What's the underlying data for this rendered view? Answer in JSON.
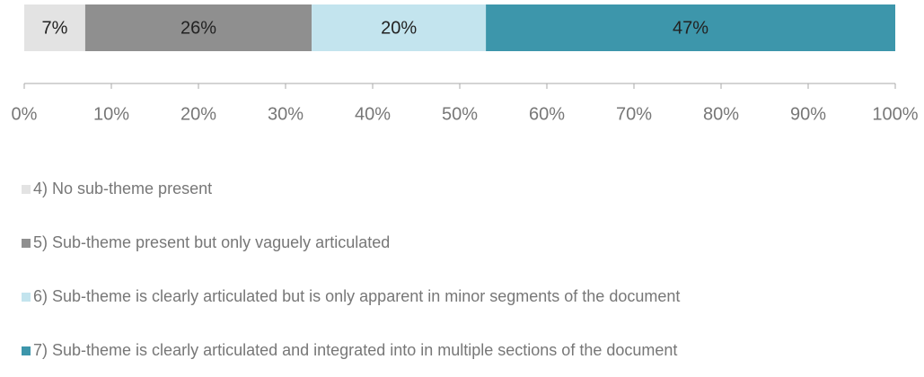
{
  "chart_data": {
    "type": "bar",
    "orientation": "horizontal",
    "stacked": true,
    "xlim": [
      0,
      100
    ],
    "xticks": [
      {
        "value": 0,
        "label": "0%"
      },
      {
        "value": 10,
        "label": "10%"
      },
      {
        "value": 20,
        "label": "20%"
      },
      {
        "value": 30,
        "label": "30%"
      },
      {
        "value": 40,
        "label": "40%"
      },
      {
        "value": 50,
        "label": "50%"
      },
      {
        "value": 60,
        "label": "60%"
      },
      {
        "value": 70,
        "label": "70%"
      },
      {
        "value": 80,
        "label": "80%"
      },
      {
        "value": 90,
        "label": "90%"
      },
      {
        "value": 100,
        "label": "100%"
      }
    ],
    "legend": "bottom",
    "series": [
      {
        "name": "4) No sub-theme present",
        "color": "#e3e3e3",
        "values": [
          7
        ],
        "value_labels": [
          "7%"
        ]
      },
      {
        "name": "5) Sub-theme present but only vaguely articulated",
        "color": "#8f8f8f",
        "values": [
          26
        ],
        "value_labels": [
          "26%"
        ]
      },
      {
        "name": "6) Sub-theme is clearly articulated but is only apparent in minor segments of the document",
        "color": "#c3e4ee",
        "values": [
          20
        ],
        "value_labels": [
          "20%"
        ]
      },
      {
        "name": "7) Sub-theme is clearly articulated and integrated into in multiple sections of the document",
        "color": "#3d96ab",
        "values": [
          47
        ],
        "value_labels": [
          "47%"
        ]
      }
    ]
  }
}
